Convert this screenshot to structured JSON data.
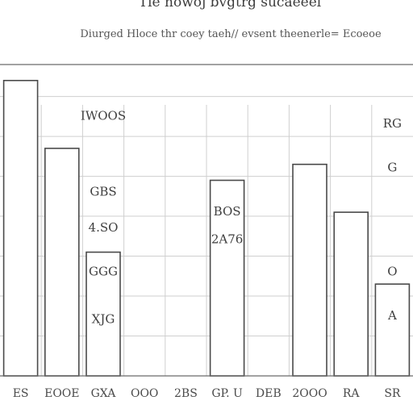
{
  "chart_data": {
    "type": "bar",
    "title": "Tle nowoj bvgtrg sucaeeel",
    "subtitle": "Diurged Hloce thr coey taeh// evsent theenerle= Ecoeoe",
    "categories": [
      "ES",
      "EOOE",
      "GXA",
      "OOO",
      "2BS",
      "GP. U",
      "DEB",
      "2OOO",
      "RA",
      "SR"
    ],
    "values": [
      74,
      57,
      31,
      0,
      0,
      49,
      0,
      53,
      41,
      23
    ],
    "ylim": [
      0,
      78
    ],
    "grid": true,
    "legend": "none",
    "colors": {
      "bar_fill": "#ffffff",
      "bar_stroke": "#4a4a4a",
      "grid": "#cfcfcf"
    },
    "annotations": [
      {
        "text": "IWOOS",
        "x": "GXA",
        "y": 65
      },
      {
        "text": "GBS",
        "x": "GXA",
        "y": 46
      },
      {
        "text": "4.SO",
        "x": "GXA",
        "y": 37
      },
      {
        "text": "GGG",
        "x": "GXA",
        "y": 26
      },
      {
        "text": "XJG",
        "x": "GXA",
        "y": 14
      },
      {
        "text": "BOS",
        "x": "GP. U",
        "y": 41
      },
      {
        "text": "2A76",
        "x": "GP. U",
        "y": 34
      },
      {
        "text": "RG",
        "x": "SR",
        "y": 63
      },
      {
        "text": "G",
        "x": "SR",
        "y": 52
      },
      {
        "text": "O",
        "x": "SR",
        "y": 26
      },
      {
        "text": "A",
        "x": "SR",
        "y": 15
      }
    ]
  }
}
